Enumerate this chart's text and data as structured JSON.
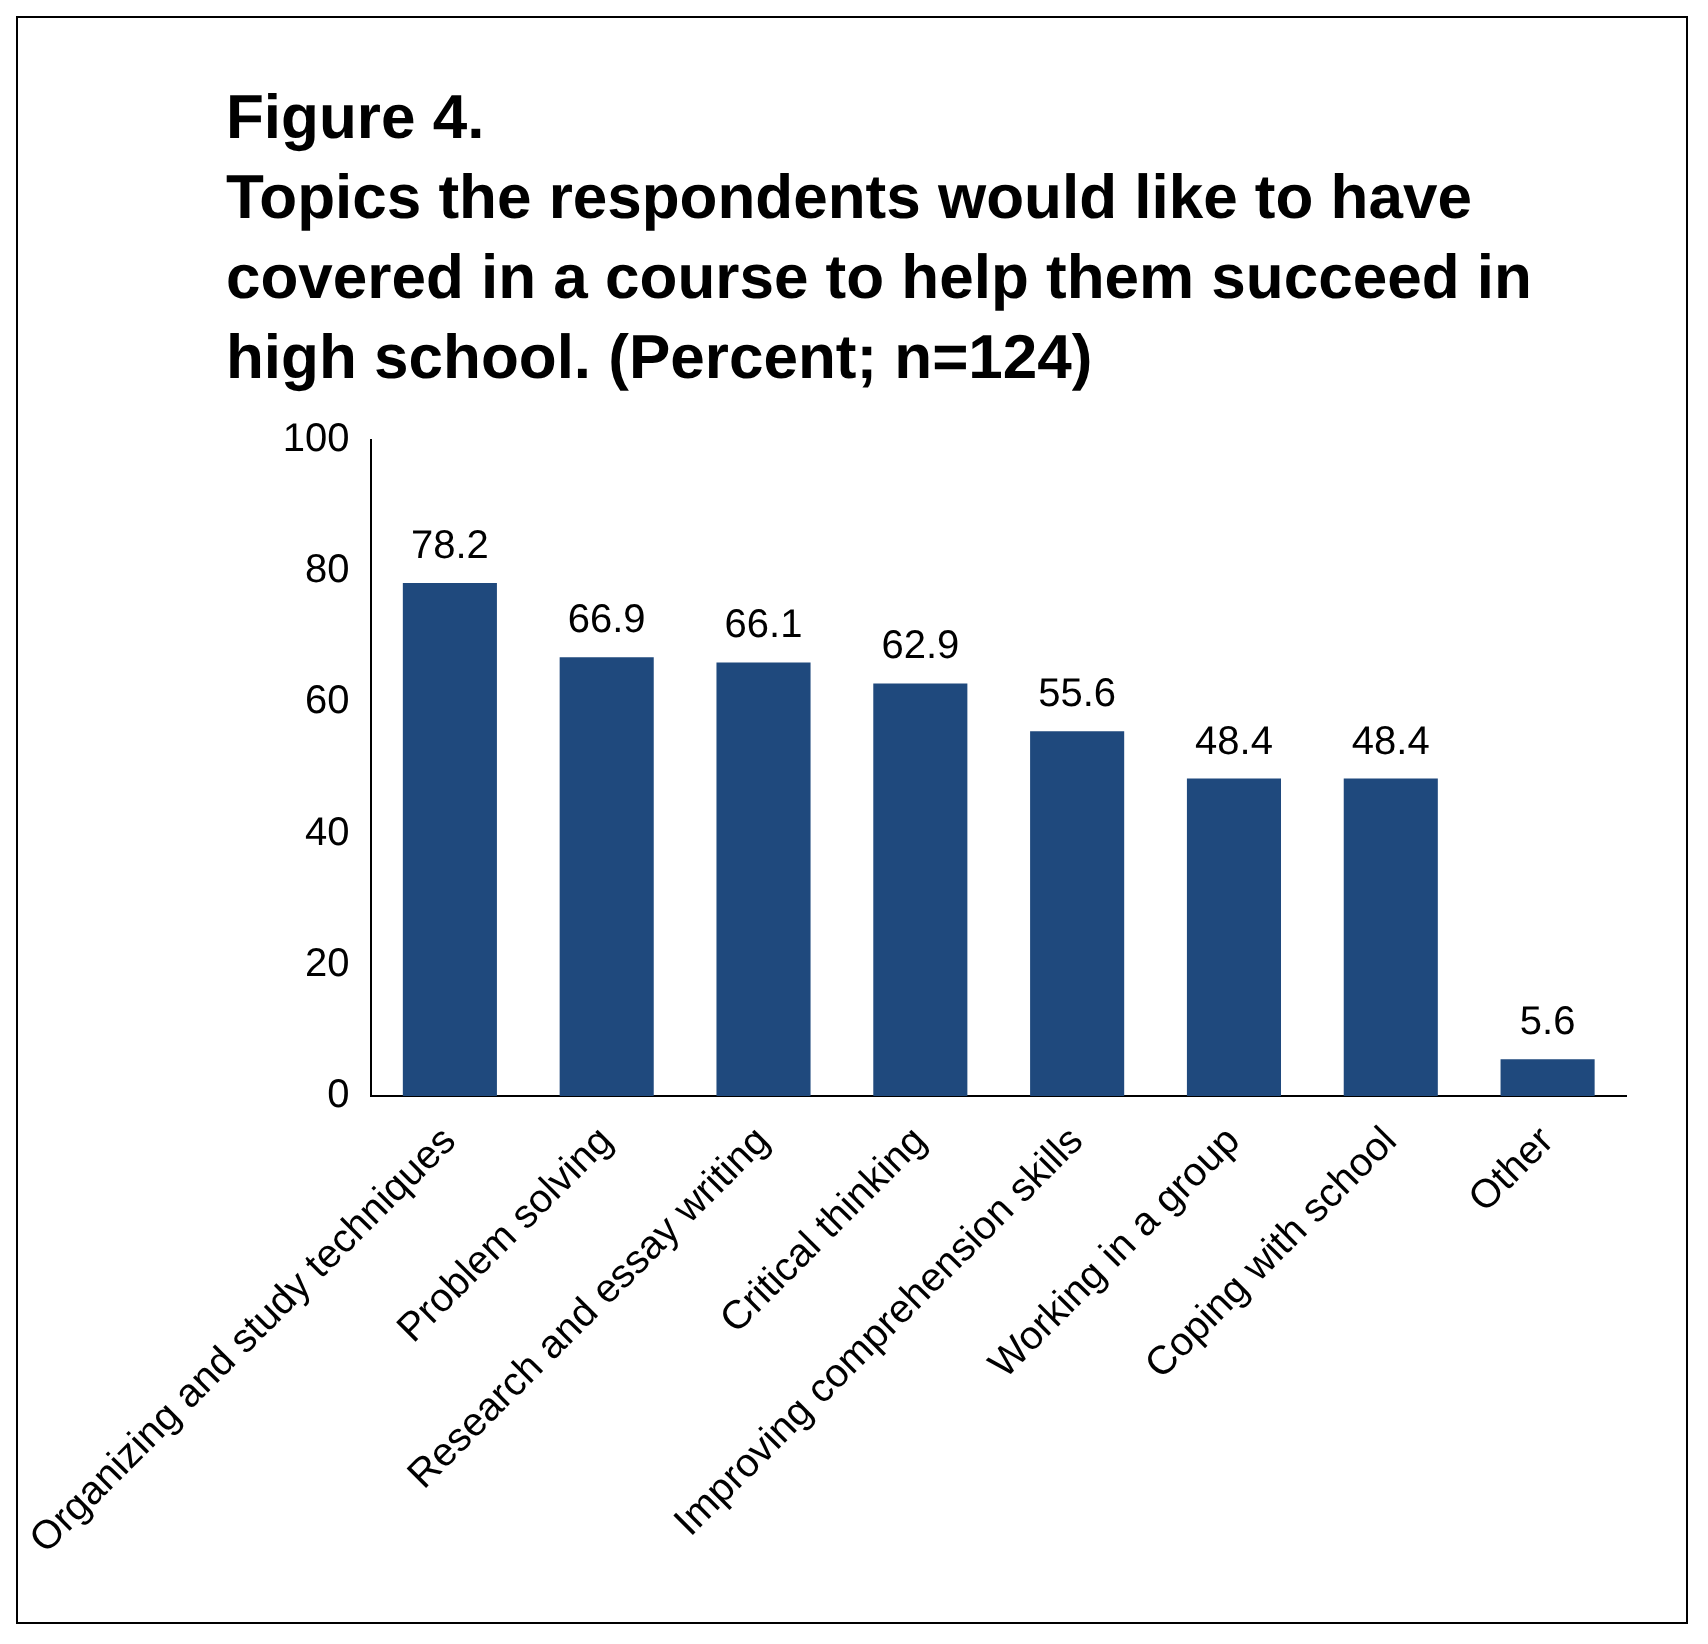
{
  "chart_data": {
    "type": "bar",
    "title": "Figure 4.",
    "subtitle": "Topics the respondents would like to have covered in a course to help them succeed in high school. (Percent; n=124)",
    "categories": [
      "Organizing and study techniques",
      "Problem solving",
      "Research and essay writing",
      "Critical thinking",
      "Improving comprehension skills",
      "Working in a group",
      "Coping with school",
      "Other"
    ],
    "values": [
      78.2,
      66.9,
      66.1,
      62.9,
      55.6,
      48.4,
      48.4,
      5.6
    ],
    "color": "#1f497d",
    "ylim": [
      0,
      100
    ],
    "yticks": [
      0,
      20,
      40,
      60,
      80,
      100
    ],
    "grid": false,
    "legend": false,
    "data_labels": true
  }
}
